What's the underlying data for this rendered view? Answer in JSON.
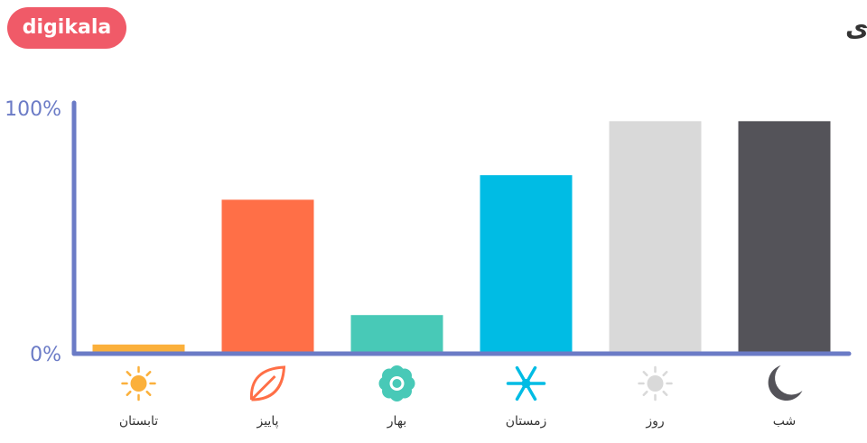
{
  "logo": "digikala",
  "chart_data": {
    "type": "bar",
    "title": "فصل پیشنهادی",
    "categories": [
      "تابستان",
      "پاییز",
      "بهار",
      "زمستان",
      "روز",
      "شب"
    ],
    "values": [
      3,
      62,
      15,
      72,
      94,
      94
    ],
    "colors": [
      "#fbb03b",
      "#ff6f47",
      "#48c9b7",
      "#00bce4",
      "#d9d9d9",
      "#545359"
    ],
    "ylim": [
      0,
      100
    ],
    "yticks": [
      {
        "value": 0,
        "label": "0%"
      },
      {
        "value": 100,
        "label": "100%"
      }
    ],
    "grid": false
  }
}
